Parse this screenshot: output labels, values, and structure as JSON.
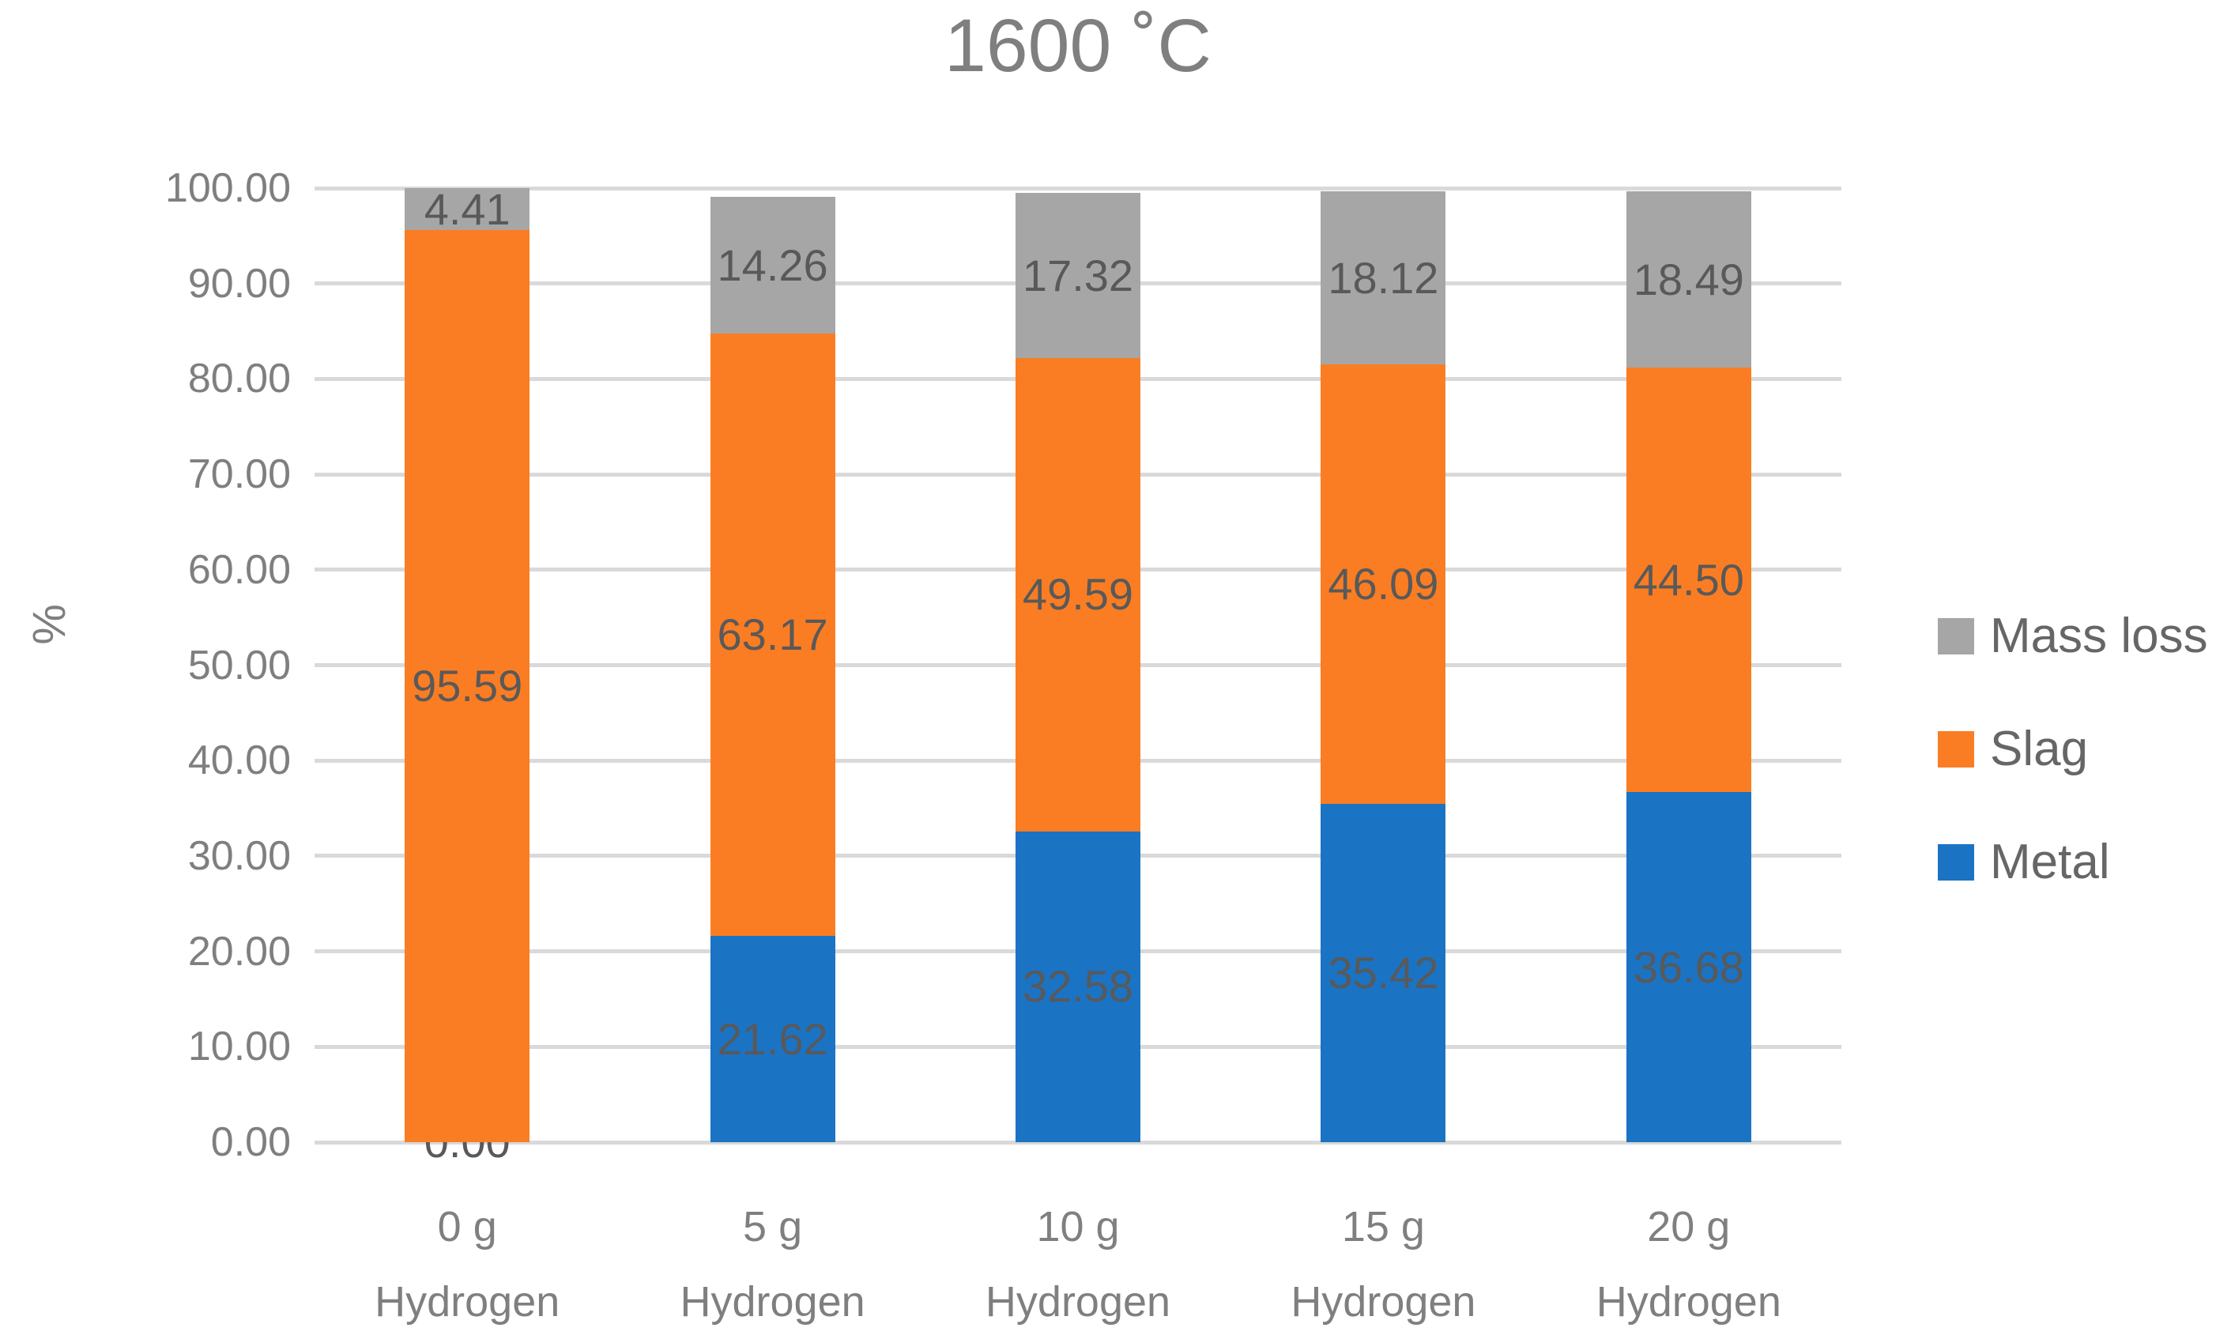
{
  "chart_data": {
    "type": "bar",
    "stacked": true,
    "title": "1600 ˚C",
    "title_color": "#7F7F7F",
    "ylabel": "%",
    "ylim": [
      0,
      100
    ],
    "ytick_step": 10,
    "ytick_decimals": 2,
    "grid": true,
    "grid_color": "#D9D9D9",
    "axis_text_color": "#7F7F7F",
    "data_label_color": "#595959",
    "legend_position": "right",
    "legend_order": [
      "Mass loss",
      "Slag",
      "Metal"
    ],
    "categories": [
      [
        "0 g",
        "Hydrogen"
      ],
      [
        "5 g",
        "Hydrogen"
      ],
      [
        "10 g",
        "Hydrogen"
      ],
      [
        "15 g",
        "Hydrogen"
      ],
      [
        "20 g",
        "Hydrogen"
      ]
    ],
    "series": [
      {
        "name": "Metal",
        "color": "#1B73C4",
        "values": [
          0.0,
          21.62,
          32.58,
          35.42,
          36.68
        ]
      },
      {
        "name": "Slag",
        "color": "#FA7D23",
        "values": [
          95.59,
          63.17,
          49.59,
          46.09,
          44.5
        ]
      },
      {
        "name": "Mass loss",
        "color": "#A6A6A6",
        "values": [
          4.41,
          14.26,
          17.32,
          18.12,
          18.49
        ]
      }
    ]
  }
}
